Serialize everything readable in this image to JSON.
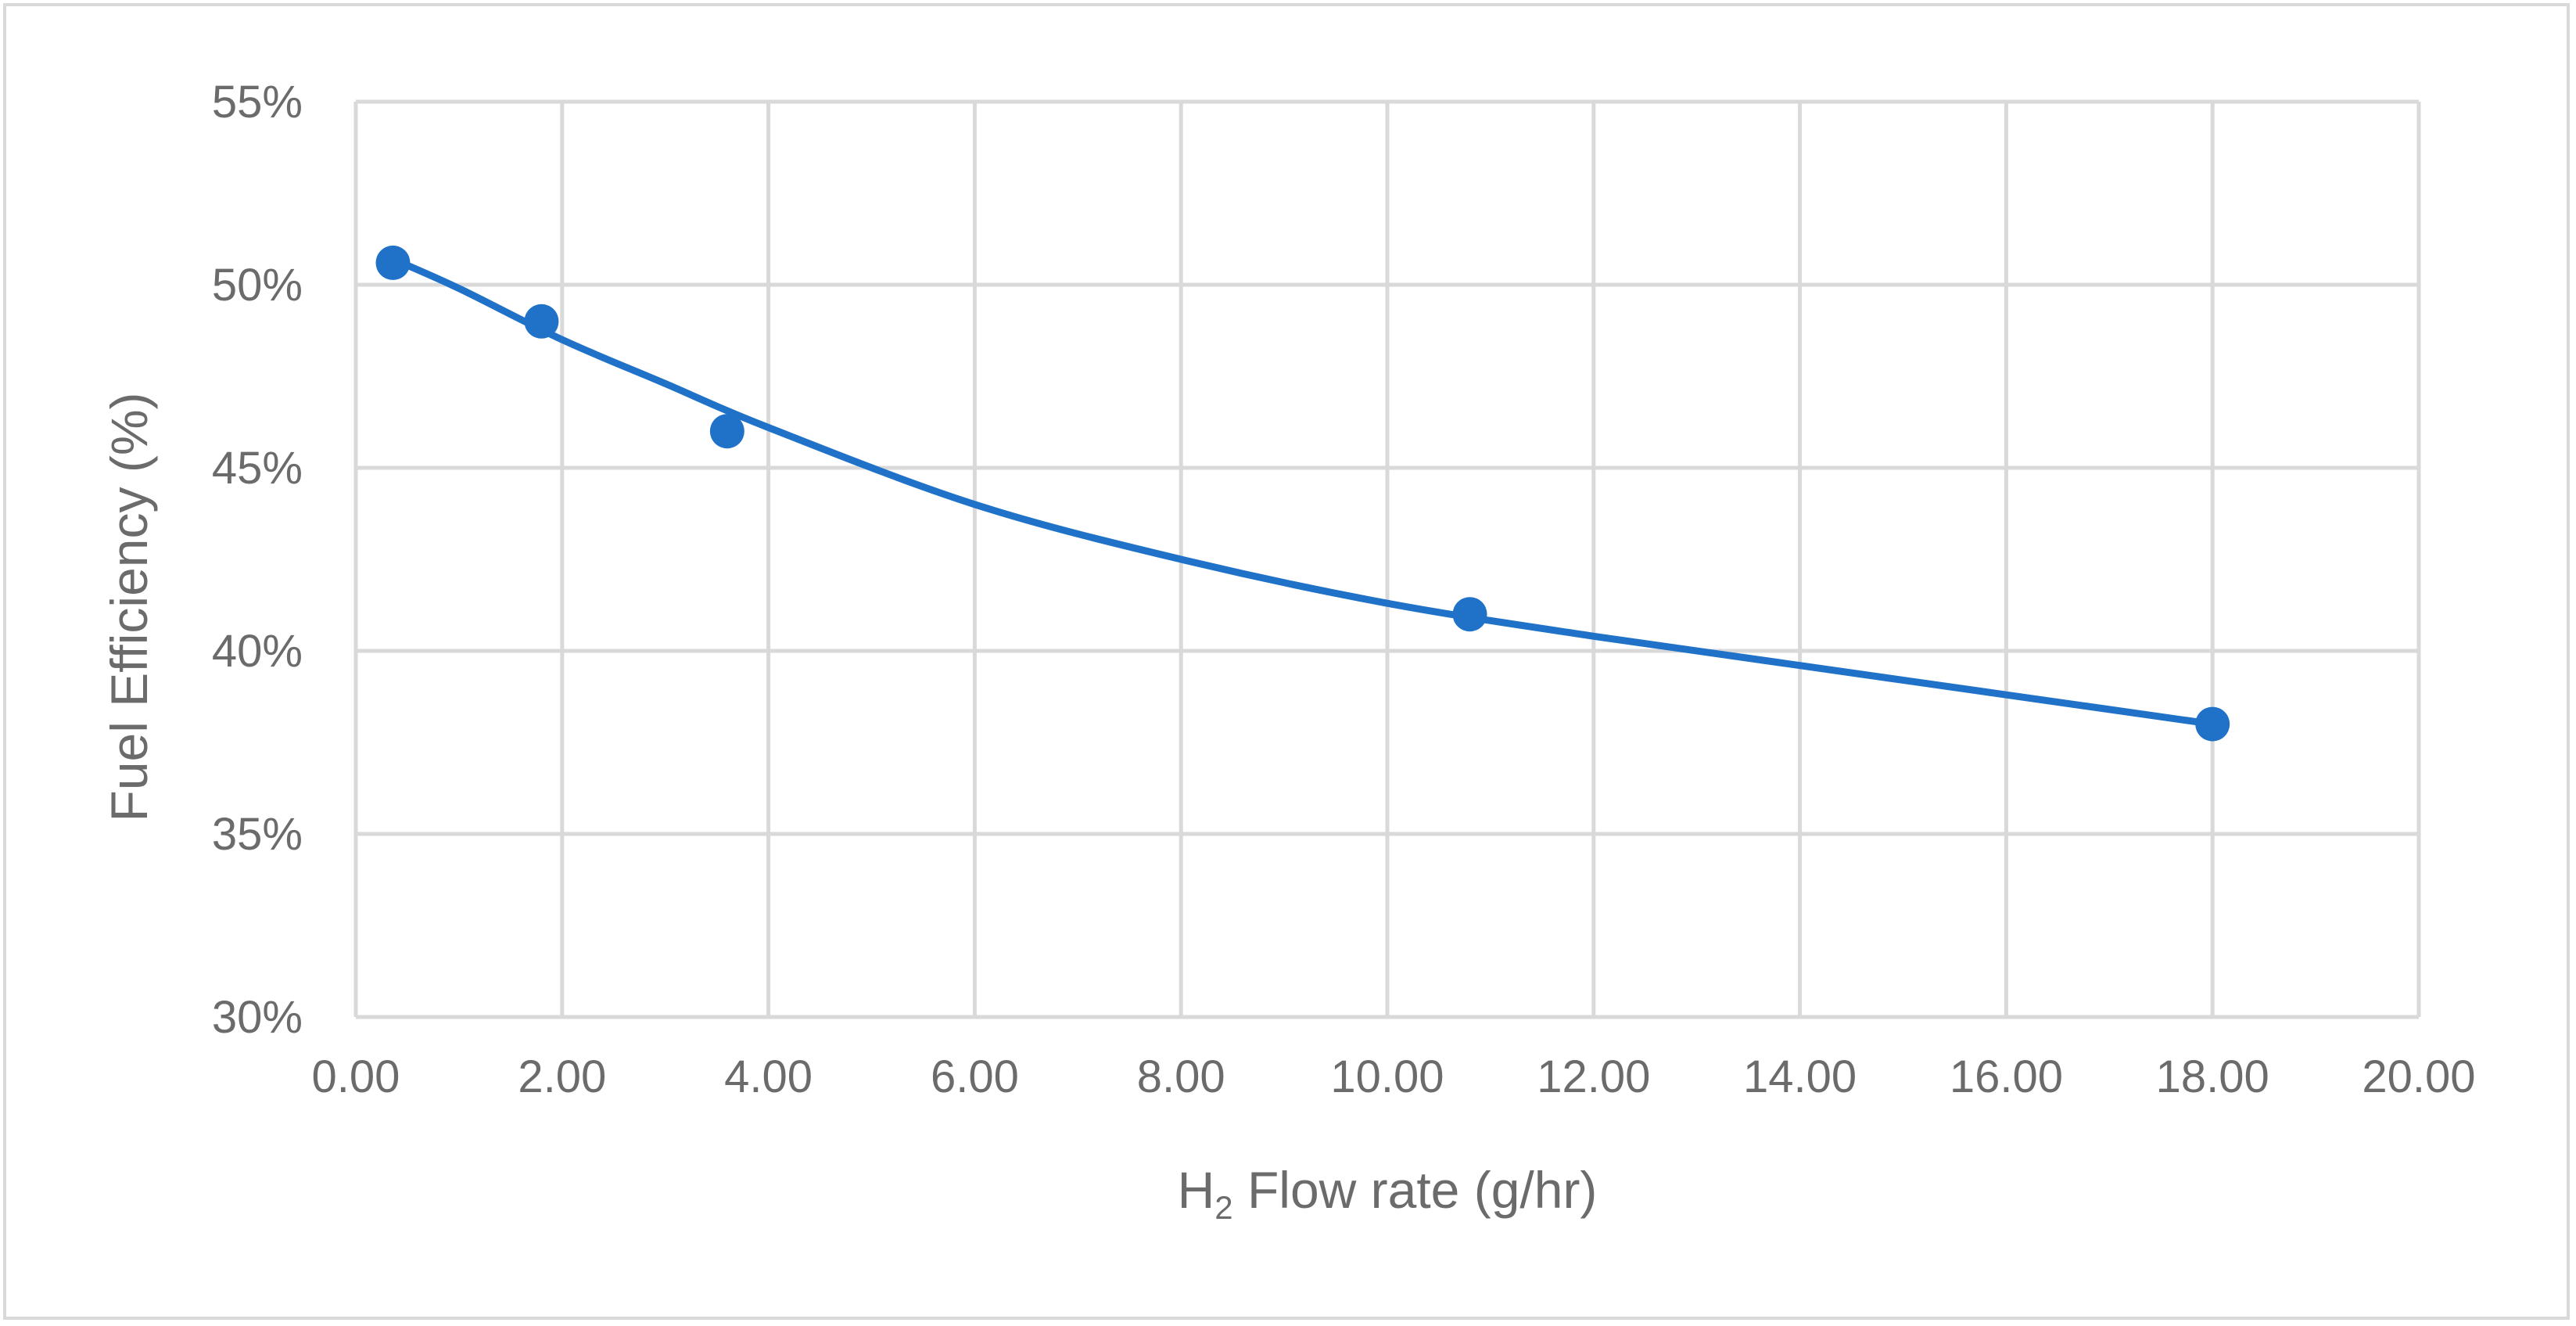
{
  "chart_data": {
    "type": "scatter",
    "title": "",
    "xlabel": "H2 Flow rate (g/hr)",
    "xlabel_parts": {
      "main": "H",
      "sub": "2",
      "rest": " Flow rate (g/hr)"
    },
    "ylabel": "Fuel Efficiency (%)",
    "xlim": [
      0,
      20
    ],
    "ylim": [
      30,
      55
    ],
    "x_ticks": [
      0,
      2,
      4,
      6,
      8,
      10,
      12,
      14,
      16,
      18,
      20
    ],
    "x_tick_labels": [
      "0.00",
      "2.00",
      "4.00",
      "6.00",
      "8.00",
      "10.00",
      "12.00",
      "14.00",
      "16.00",
      "18.00",
      "20.00"
    ],
    "y_ticks": [
      30,
      35,
      40,
      45,
      50,
      55
    ],
    "y_tick_labels": [
      "30%",
      "35%",
      "40%",
      "45%",
      "50%",
      "55%"
    ],
    "grid": true,
    "series": [
      {
        "name": "Fuel Efficiency",
        "color": "#1f72c8",
        "x": [
          0.36,
          1.8,
          3.6,
          10.8,
          18.0
        ],
        "y": [
          50.6,
          49.0,
          46.0,
          41.0,
          38.0
        ],
        "trendline": {
          "type": "smooth",
          "x": [
            0.36,
            1.0,
            2.0,
            3.0,
            4.0,
            6.0,
            8.0,
            10.0,
            12.0,
            14.0,
            16.0,
            18.0
          ],
          "y": [
            50.7,
            49.9,
            48.5,
            47.3,
            46.1,
            44.0,
            42.5,
            41.3,
            40.4,
            39.6,
            38.8,
            38.0
          ]
        }
      }
    ]
  }
}
